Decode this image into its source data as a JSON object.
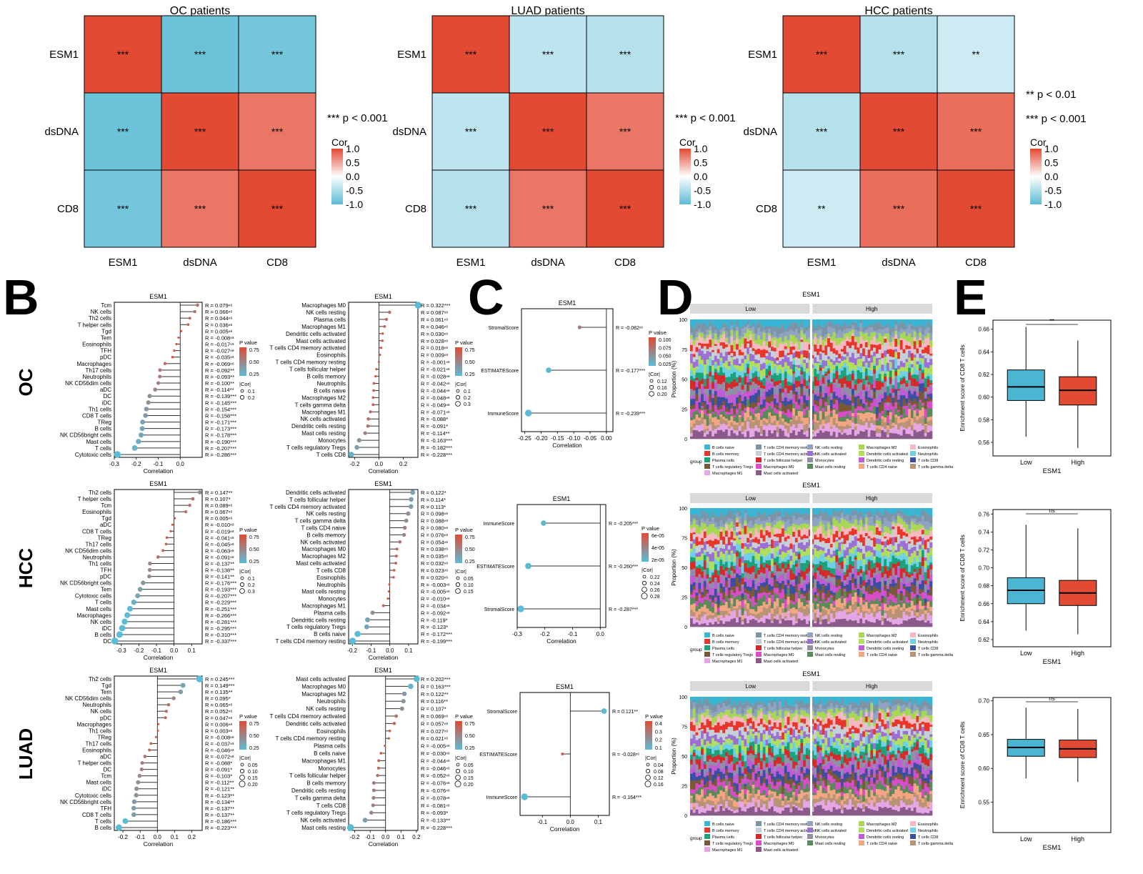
{
  "colors": {
    "pos": "#e34a33",
    "neg": "#5bbcd6",
    "mid": "#ffffff",
    "grid": "#000000",
    "panel": "#d9d9d9",
    "stem": "#333333",
    "box_low": "#4ab6d4",
    "box_high": "#e34a33"
  },
  "heatmaps": [
    {
      "title": "OC patients",
      "rows": [
        "ESM1",
        "dsDNA",
        "CD8"
      ],
      "cols": [
        "ESM1",
        "dsDNA",
        "CD8"
      ],
      "values": [
        [
          1,
          -0.9,
          -0.85
        ],
        [
          -0.9,
          1,
          0.75
        ],
        [
          -0.85,
          0.75,
          1
        ]
      ],
      "stars": [
        [
          "***",
          "***",
          "***"
        ],
        [
          "***",
          "***",
          "***"
        ],
        [
          "***",
          "***",
          "***"
        ]
      ],
      "sig": [
        "*** p < 0.001"
      ],
      "legend_title": "Cor",
      "legend_ticks": [
        "1.0",
        "0.5",
        "0.0",
        "-0.5",
        "-1.0"
      ]
    },
    {
      "title": "LUAD patients",
      "rows": [
        "ESM1",
        "dsDNA",
        "CD8"
      ],
      "cols": [
        "ESM1",
        "dsDNA",
        "CD8"
      ],
      "values": [
        [
          1,
          -0.4,
          -0.45
        ],
        [
          -0.4,
          1,
          0.75
        ],
        [
          -0.45,
          0.75,
          1
        ]
      ],
      "stars": [
        [
          "***",
          "***",
          "***"
        ],
        [
          "***",
          "***",
          "***"
        ],
        [
          "***",
          "***",
          "***"
        ]
      ],
      "sig": [
        "*** p < 0.001"
      ],
      "legend_title": "Cor",
      "legend_ticks": [
        "1.0",
        "0.5",
        "0.0",
        "-0.5",
        "-1.0"
      ]
    },
    {
      "title": "HCC patients",
      "rows": [
        "ESM1",
        "dsDNA",
        "CD8"
      ],
      "cols": [
        "ESM1",
        "dsDNA",
        "CD8"
      ],
      "values": [
        [
          1,
          -0.45,
          -0.3
        ],
        [
          -0.45,
          1,
          0.8
        ],
        [
          -0.3,
          0.8,
          1
        ]
      ],
      "stars": [
        [
          "***",
          "***",
          "**"
        ],
        [
          "***",
          "***",
          "***"
        ],
        [
          "**",
          "***",
          "***"
        ]
      ],
      "sig": [
        "** p < 0.01",
        "*** p < 0.001"
      ],
      "legend_title": "Cor",
      "legend_ticks": [
        "1.0",
        "0.5",
        "0.0",
        "-0.5",
        "-1.0"
      ]
    }
  ],
  "panel_labels": [
    "B",
    "C",
    "D",
    "E"
  ],
  "row_labels": [
    "OC",
    "HCC",
    "LUAD"
  ],
  "lollipop_common": {
    "title": "ESM1",
    "xlabel": "Correlation",
    "pval_title": "P value",
    "cor_title": "|Cor|"
  },
  "chart_data": [
    {
      "type": "lollipop",
      "id": "OC-1",
      "xlim": [
        -0.3,
        0.1
      ],
      "ticks": [
        "-0.3",
        "-0.2",
        "-0.1",
        "0.0"
      ],
      "ptick": [
        "0.75",
        "0.50",
        "0.25"
      ],
      "cortick": [
        "0.1",
        "0.2"
      ],
      "labels": [
        "Tcm",
        "NK cells",
        "Th2 cells",
        "T helper cells",
        "Tgd",
        "Tem",
        "Eosinophils",
        "TFH",
        "pDC",
        "Macrophages",
        "Th17 cells",
        "Neutrophils",
        "NK CD56dim cells",
        "aDC",
        "DC",
        "iDC",
        "Th1 cells",
        "CD8 T cells",
        "TReg",
        "B cells",
        "NK CD56bright cells",
        "Mast cells",
        "T cells",
        "Cytotoxic cells"
      ],
      "values": [
        0.079,
        0.066,
        0.044,
        0.036,
        0.005,
        -0.008,
        -0.017,
        -0.027,
        -0.035,
        -0.069,
        -0.092,
        -0.093,
        -0.1,
        -0.114,
        -0.139,
        -0.145,
        -0.154,
        -0.158,
        -0.171,
        -0.173,
        -0.178,
        -0.19,
        -0.207,
        -0.286
      ],
      "rtext": [
        "R = 0.079ⁿˢ",
        "R = 0.066ⁿˢ",
        "R = 0.044ⁿˢ",
        "R = 0.036ⁿˢ",
        "R = 0.005ⁿˢ",
        "R = -0.008ⁿˢ",
        "R = -0.017ⁿˢ",
        "R = -0.027ⁿˢ",
        "R = -0.035ⁿˢ",
        "R = -0.069ⁿˢ",
        "R = -0.092**",
        "R = -0.093**",
        "R = -0.100**",
        "R = -0.114**",
        "R = -0.139***",
        "R = -0.145***",
        "R = -0.154***",
        "R = -0.158***",
        "R = -0.171***",
        "R = -0.173***",
        "R = -0.178***",
        "R = -0.190***",
        "R = -0.207***",
        "R = -0.286***"
      ]
    },
    {
      "type": "lollipop",
      "id": "OC-2",
      "xlim": [
        -0.25,
        0.32
      ],
      "ticks": [
        "-0.2",
        "0.0",
        "0.2"
      ],
      "ptick": [
        "0.75",
        "0.50",
        "0.25"
      ],
      "cortick": [
        "0.1",
        "0.2",
        "0.3"
      ],
      "labels": [
        "Macrophages M0",
        "NK cells resting",
        "Plasma cells",
        "Macrophages M1",
        "Dendritic cells activated",
        "Mast cells activated",
        "T cells CD4 memory activated",
        "Eosinophils",
        "T cells CD4 memory resting",
        "T cells follicular helper",
        "B cells memory",
        "Neutrophils",
        "B cells naive",
        "Macrophages M2",
        "T cells gamma delta",
        "Macrophages M1",
        "NK cells activated",
        "Dendritic cells resting",
        "Mast cells resting",
        "Monocytes",
        "T cells regulatory Tregs",
        "T cells CD8"
      ],
      "values": [
        0.322,
        0.087,
        0.061,
        0.046,
        0.03,
        0.028,
        0.018,
        0.009,
        -0.001,
        -0.021,
        -0.028,
        -0.042,
        -0.044,
        -0.048,
        -0.049,
        -0.071,
        -0.088,
        -0.091,
        -0.114,
        -0.163,
        -0.182,
        -0.228
      ],
      "rtext": [
        "R = 0.322***",
        "R = 0.087ⁿˢ",
        "R = 0.061ⁿˢ",
        "R = 0.046ⁿˢ",
        "R = 0.030ⁿˢ",
        "R = 0.028ⁿˢ",
        "R = 0.018ⁿˢ",
        "R = 0.009ⁿˢ",
        "R = -0.001ⁿˢ",
        "R = -0.021ⁿˢ",
        "R = -0.028ⁿˢ",
        "R = -0.042ⁿˢ",
        "R = -0.044ⁿˢ",
        "R = -0.048ⁿˢ",
        "R = -0.049ⁿˢ",
        "R = -0.071ⁿˢ",
        "R = -0.088*",
        "R = -0.091*",
        "R = -0.114**",
        "R = -0.163***",
        "R = -0.182***",
        "R = -0.228***"
      ]
    },
    {
      "type": "lollipop",
      "id": "HCC-1",
      "xlim": [
        -0.34,
        0.16
      ],
      "ticks": [
        "-0.3",
        "-0.2",
        "-0.1",
        "0.0",
        "0.1"
      ],
      "ptick": [
        "0.75",
        "0.50",
        "0.25"
      ],
      "cortick": [
        "0.1",
        "0.2",
        "0.3"
      ],
      "labels": [
        "Th2 cells",
        "T helper cells",
        "Tcm",
        "Eosinophils",
        "Tgd",
        "aDC",
        "CD8 T cells",
        "TReg",
        "Th17 cells",
        "NK CD56dim cells",
        "Neutrophils",
        "Th1 cells",
        "TFH",
        "pDC",
        "NK CD56bright cells",
        "Tem",
        "Cytotoxic cells",
        "T cells",
        "Mast cells",
        "Macrophages",
        "NK cells",
        "iDC",
        "B cells",
        "DC"
      ],
      "values": [
        0.147,
        0.107,
        0.089,
        0.067,
        0.005,
        -0.01,
        -0.019,
        -0.041,
        -0.045,
        -0.063,
        -0.091,
        -0.137,
        -0.138,
        -0.141,
        -0.176,
        -0.193,
        -0.207,
        -0.229,
        -0.251,
        -0.266,
        -0.281,
        -0.295,
        -0.31,
        -0.337
      ],
      "rtext": [
        "R = 0.147**",
        "R = 0.107*",
        "R = 0.089ⁿˢ",
        "R = 0.067ⁿˢ",
        "R = 0.005ⁿˢ",
        "R = -0.010ⁿˢ",
        "R = -0.019ⁿˢ",
        "R = -0.041ⁿˢ",
        "R = -0.045ⁿˢ",
        "R = -0.063ⁿˢ",
        "R = -0.091ⁿˢ",
        "R = -0.137**",
        "R = -0.138**",
        "R = -0.141**",
        "R = -0.176***",
        "R = -0.193***",
        "R = -0.207***",
        "R = -0.229***",
        "R = -0.251***",
        "R = -0.266***",
        "R = -0.281***",
        "R = -0.295***",
        "R = -0.310***",
        "R = -0.337***"
      ]
    },
    {
      "type": "lollipop",
      "id": "HCC-2",
      "xlim": [
        -0.22,
        0.15
      ],
      "ticks": [
        "-0.2",
        "-0.1",
        "0.0",
        "0.1"
      ],
      "ptick": [
        "0.75",
        "0.50",
        "0.25"
      ],
      "cortick": [
        "0.05",
        "0.10",
        "0.15"
      ],
      "labels": [
        "Dendritic cells activated",
        "T cells follicular helper",
        "T cells CD4 memory activated",
        "NK cells resting",
        "T cells gamma delta",
        "T cells CD4 naive",
        "B cells memory",
        "NK cells activated",
        "Macrophages M0",
        "Macrophages M2",
        "Mast cells activated",
        "T cells CD8",
        "Eosinophils",
        "Neutrophils",
        "Mast cells resting",
        "Monocytes",
        "Macrophages M1",
        "Plasma cells",
        "Dendritic cells resting",
        "T cells regulatory Tregs",
        "B cells naive",
        "T cells CD4 memory resting"
      ],
      "values": [
        0.122,
        0.114,
        0.113,
        0.098,
        0.088,
        0.08,
        0.076,
        0.054,
        0.038,
        0.035,
        0.032,
        0.023,
        0.02,
        -0.003,
        -0.005,
        -0.01,
        -0.034,
        -0.092,
        -0.119,
        -0.123,
        -0.172,
        -0.199
      ],
      "rtext": [
        "R = 0.122*",
        "R = 0.114*",
        "R = 0.113*",
        "R = 0.098ⁿˢ",
        "R = 0.088ⁿˢ",
        "R = 0.080ⁿˢ",
        "R = 0.076ⁿˢ",
        "R = 0.054ⁿˢ",
        "R = 0.038ⁿˢ",
        "R = 0.035ⁿˢ",
        "R = 0.032ⁿˢ",
        "R = 0.023ⁿˢ",
        "R = 0.020ⁿˢ",
        "R = -0.003ⁿˢ",
        "R = -0.005ⁿˢ",
        "R = -0.010ⁿˢ",
        "R = -0.034ⁿˢ",
        "R = -0.092ⁿˢ",
        "R = -0.119*",
        "R = -0.123*",
        "R = -0.172***",
        "R = -0.199***"
      ]
    },
    {
      "type": "lollipop",
      "id": "LUAD-1",
      "xlim": [
        -0.25,
        0.26
      ],
      "ticks": [
        "-0.2",
        "-0.1",
        "0.0",
        "0.1",
        "0.2"
      ],
      "ptick": [
        "0.75",
        "0.50",
        "0.25"
      ],
      "cortick": [
        "0.05",
        "0.10",
        "0.15",
        "0.20"
      ],
      "labels": [
        "Th2 cells",
        "Tgd",
        "Tem",
        "NK CD56dim cells",
        "Neutrophils",
        "NK cells",
        "pDC",
        "Macrophages",
        "Th1 cells",
        "TReg",
        "Th17 cells",
        "Eosinophils",
        "aDC",
        "T helper cells",
        "DC",
        "Tcm",
        "Mast cells",
        "iDC",
        "Cytotoxic cells",
        "NK CD56bright cells",
        "TFH",
        "CD8 T cells",
        "T cells",
        "B cells"
      ],
      "values": [
        0.245,
        0.149,
        0.135,
        0.095,
        0.065,
        0.052,
        0.047,
        0.006,
        0.003,
        -0.008,
        -0.037,
        -0.046,
        -0.072,
        -0.088,
        -0.091,
        -0.103,
        -0.112,
        -0.121,
        -0.123,
        -0.134,
        -0.137,
        -0.137,
        -0.186,
        -0.223
      ],
      "rtext": [
        "R = 0.245***",
        "R = 0.149***",
        "R = 0.135**",
        "R = 0.095*",
        "R = 0.065ⁿˢ",
        "R = 0.052ⁿˢ",
        "R = 0.047ⁿˢ",
        "R = 0.006ⁿˢ",
        "R = 0.003ⁿˢ",
        "R = -0.008ⁿˢ",
        "R = -0.037ⁿˢ",
        "R = -0.046ⁿˢ",
        "R = -0.072ⁿˢ",
        "R = -0.088*",
        "R = -0.091*",
        "R = -0.103*",
        "R = -0.112**",
        "R = -0.121**",
        "R = -0.123**",
        "R = -0.134**",
        "R = -0.137**",
        "R = -0.137**",
        "R = -0.186***",
        "R = -0.223***"
      ]
    },
    {
      "type": "lollipop",
      "id": "LUAD-2",
      "xlim": [
        -0.24,
        0.21
      ],
      "ticks": [
        "-0.2",
        "-0.1",
        "0.0",
        "0.1",
        "0.2"
      ],
      "ptick": [
        "0.75",
        "0.50",
        "0.25"
      ],
      "cortick": [
        "0.05",
        "0.10",
        "0.15",
        "0.20"
      ],
      "labels": [
        "Mast cells activated",
        "Macrophages M0",
        "Macrophages M2",
        "Neutrophils",
        "NK cells resting",
        "T cells CD4 memory activated",
        "Dendritic cells activated",
        "Eosinophils",
        "T cells CD4 memory resting",
        "Plasma cells",
        "B cells naive",
        "Macrophages M1",
        "Monocytes",
        "T cells follicular helper",
        "B cells memory",
        "Dendritic cells resting",
        "T cells gamma delta",
        "T cells CD8",
        "T cells regulatory Tregs",
        "NK cells activated",
        "Mast cells resting"
      ],
      "values": [
        0.202,
        0.163,
        0.122,
        0.116,
        0.107,
        0.069,
        0.057,
        0.027,
        0.021,
        -0.005,
        -0.03,
        -0.044,
        -0.046,
        -0.052,
        -0.076,
        -0.076,
        -0.078,
        -0.081,
        -0.093,
        -0.133,
        -0.228
      ],
      "rtext": [
        "R = 0.202***",
        "R = 0.163***",
        "R = 0.122**",
        "R = 0.116**",
        "R = 0.107*",
        "R = 0.069ⁿˢ",
        "R = 0.057ⁿˢ",
        "R = 0.027ⁿˢ",
        "R = 0.021ⁿˢ",
        "R = -0.005ⁿˢ",
        "R = -0.030ⁿˢ",
        "R = -0.044ⁿˢ",
        "R = -0.046ⁿˢ",
        "R = -0.052ⁿˢ",
        "R = -0.076ⁿˢ",
        "R = -0.076ⁿˢ",
        "R = -0.078ⁿˢ",
        "R = -0.081ⁿˢ",
        "R = -0.093*",
        "R = -0.133**",
        "R = -0.228***"
      ]
    },
    {
      "type": "lollipop",
      "id": "C-OC",
      "xlim": [
        -0.26,
        0.02
      ],
      "ticks": [
        "-0.25",
        "-0.20",
        "-0.15",
        "-0.10",
        "-0.05",
        "0.00"
      ],
      "ptick": [
        "0.100",
        "0.075",
        "0.050",
        "0.025"
      ],
      "cortick": [
        "0.12",
        "0.16",
        "0.20"
      ],
      "labels": [
        "StromalScore",
        "ESTIMATEScore",
        "ImmuneScore"
      ],
      "values": [
        -0.082,
        -0.177,
        -0.239
      ],
      "rtext": [
        "R = -0.082ⁿˢ",
        "R = -0.177***",
        "R = -0.239***"
      ]
    },
    {
      "type": "lollipop",
      "id": "C-HCC",
      "xlim": [
        -0.3,
        0.02
      ],
      "ticks": [
        "-0.3",
        "-0.2",
        "-0.1",
        "0.0"
      ],
      "ptick": [
        "6e-05",
        "4e-05",
        "2e-05"
      ],
      "cortick": [
        "0.22",
        "0.24",
        "0.26",
        "0.28"
      ],
      "labels": [
        "ImmuneScore",
        "ESTIMATEScore",
        "StromalScore"
      ],
      "values": [
        -0.205,
        -0.26,
        -0.287
      ],
      "rtext": [
        "R = -0.205***",
        "R = -0.260***",
        "R = -0.287***"
      ]
    },
    {
      "type": "lollipop",
      "id": "C-LUAD",
      "xlim": [
        -0.18,
        0.14
      ],
      "ticks": [
        "-0.1",
        "0.0",
        "0.1"
      ],
      "ptick": [
        "0.4",
        "0.3",
        "0.2",
        "0.1"
      ],
      "cortick": [
        "0.04",
        "0.08",
        "0.12",
        "0.16"
      ],
      "labels": [
        "StromalScore",
        "ESTIMATEScore",
        "ImmuneScore"
      ],
      "values": [
        0.121,
        -0.028,
        -0.164
      ],
      "rtext": [
        "R = 0.121**",
        "R = -0.028ⁿˢ",
        "R = -0.164***"
      ]
    },
    {
      "type": "boxplot",
      "id": "E-OC",
      "groups": [
        "Low",
        "High"
      ],
      "xlabel": "ESM1",
      "ylabel": "Enrichment score of CD8 T cells",
      "ylim": [
        0.548,
        0.668
      ],
      "ticks": [
        "0.56",
        "0.58",
        "0.60",
        "0.62",
        "0.64",
        "0.66"
      ],
      "sig": "**",
      "stats": [
        {
          "min": 0.565,
          "q1": 0.597,
          "median": 0.609,
          "q3": 0.624,
          "max": 0.662
        },
        {
          "min": 0.555,
          "q1": 0.593,
          "median": 0.606,
          "q3": 0.618,
          "max": 0.65
        }
      ]
    },
    {
      "type": "boxplot",
      "id": "E-HCC",
      "groups": [
        "Low",
        "High"
      ],
      "xlabel": "ESM1",
      "ylabel": "Enrichment score of CD8 T cells",
      "ylim": [
        0.612,
        0.765
      ],
      "ticks": [
        "0.62",
        "0.64",
        "0.66",
        "0.68",
        "0.70",
        "0.72",
        "0.74",
        "0.76"
      ],
      "sig": "ns",
      "stats": [
        {
          "min": 0.63,
          "q1": 0.66,
          "median": 0.675,
          "q3": 0.689,
          "max": 0.748
        },
        {
          "min": 0.626,
          "q1": 0.658,
          "median": 0.672,
          "q3": 0.686,
          "max": 0.744
        }
      ]
    },
    {
      "type": "boxplot",
      "id": "E-LUAD",
      "groups": [
        "Low",
        "High"
      ],
      "xlabel": "ESM1",
      "ylabel": "Enrichment score of CD8 T cells",
      "ylim": [
        0.505,
        0.705
      ],
      "ticks": [
        "0.55",
        "0.60",
        "0.65",
        "0.70"
      ],
      "sig": "ns",
      "stats": [
        {
          "min": 0.585,
          "q1": 0.618,
          "median": 0.631,
          "q3": 0.643,
          "max": 0.69
        },
        {
          "min": 0.58,
          "q1": 0.616,
          "median": 0.629,
          "q3": 0.642,
          "max": 0.688
        }
      ]
    }
  ],
  "stacked": {
    "title": "ESM1",
    "facets": [
      "Low",
      "High"
    ],
    "ylabel": "Proportion (%)",
    "yticks": [
      "0",
      "25",
      "50",
      "75",
      "100"
    ],
    "legend_group": "group",
    "legend_items": [
      "B cells naive",
      "T cells CD4 memory resting",
      "NK cells resting",
      "Macrophages M2",
      "Eosinophils",
      "B cells memory",
      "T cells CD4 memory activated",
      "NK cells activated",
      "Dendritic cells activated",
      "Neutrophils",
      "Plasma cells",
      "T cells follicular helper",
      "Monocytes",
      "Dendritic cells resting",
      "T cells CD8",
      "T cells regulatory Tregs",
      "Macrophages M0",
      "Mast cells resting",
      "T cells CD4 naive",
      "T cells gamma delta",
      "Macrophages M1",
      "Mast cells activated"
    ],
    "legend_colors": [
      "#39b6d6",
      "#7c95a6",
      "#8fa3c4",
      "#a6d854",
      "#f7b7c3",
      "#e8362b",
      "#c5d0d8",
      "#9b6fd6",
      "#b0e05a",
      "#6ecfe6",
      "#1aa37a",
      "#d62a2a",
      "#8f8fa6",
      "#c15bd6",
      "#3a4fa0",
      "#7a5a36",
      "#d84cc9",
      "#5a8a5a",
      "#f4a582",
      "#b89474",
      "#e6a6e6",
      "#8a5a8a"
    ]
  }
}
